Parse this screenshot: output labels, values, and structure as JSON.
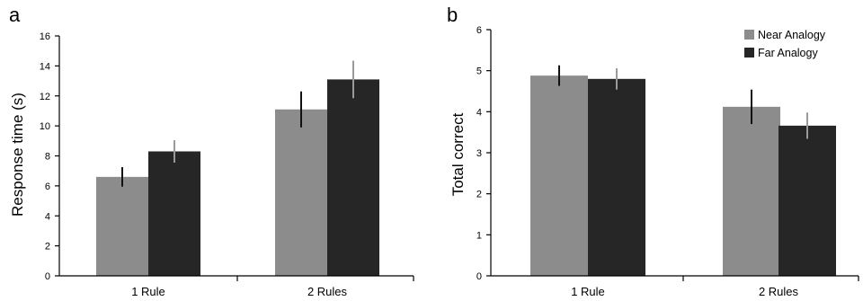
{
  "chart_data": [
    {
      "type": "bar",
      "panel_label": "a",
      "categories": [
        "1 Rule",
        "2 Rules"
      ],
      "ylabel": "Response time (s)",
      "xlabel": "",
      "ylim": [
        0,
        16
      ],
      "yticks": [
        "0",
        "2",
        "4",
        "6",
        "8",
        "10",
        "12",
        "14",
        "16"
      ],
      "grid": false,
      "legend": "none",
      "series": [
        {
          "color": "#8c8c8c",
          "values": [
            6.6,
            11.1
          ],
          "err": [
            0.65,
            1.2
          ]
        },
        {
          "color": "#262626",
          "values": [
            8.3,
            13.1
          ],
          "err": [
            0.75,
            1.25
          ]
        }
      ]
    },
    {
      "type": "bar",
      "panel_label": "b",
      "categories": [
        "1 Rule",
        "2 Rules"
      ],
      "ylabel": "Total correct",
      "xlabel": "",
      "ylim": [
        0,
        6
      ],
      "yticks": [
        "0",
        "1",
        "2",
        "3",
        "4",
        "5",
        "6"
      ],
      "grid": false,
      "legend": "top-right",
      "series": [
        {
          "name": "Near Analogy",
          "color": "#8c8c8c",
          "values": [
            4.88,
            4.12
          ],
          "err": [
            0.25,
            0.42
          ]
        },
        {
          "name": "Far Analogy",
          "color": "#262626",
          "values": [
            4.8,
            3.66
          ],
          "err": [
            0.26,
            0.32
          ]
        }
      ]
    }
  ]
}
